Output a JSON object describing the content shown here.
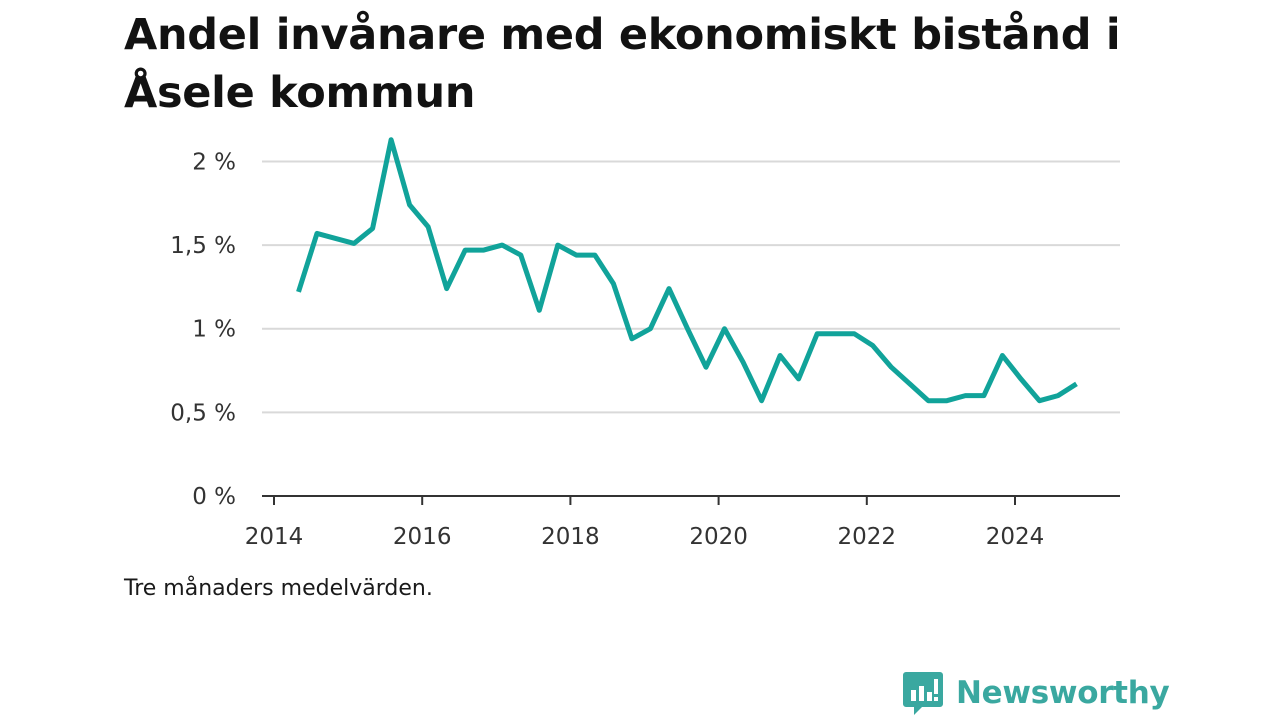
{
  "chart_data": {
    "type": "line",
    "title": "Andel invånare med ekonomiskt bistånd i Åsele kommun",
    "note": "Tre månaders medelvärden.",
    "ylim": [
      0,
      2.2
    ],
    "y_ticks": [
      {
        "value": 0,
        "label": "0 %"
      },
      {
        "value": 0.5,
        "label": "0,5 %"
      },
      {
        "value": 1,
        "label": "1 %"
      },
      {
        "value": 1.5,
        "label": "1,5 %"
      },
      {
        "value": 2,
        "label": "2 %"
      }
    ],
    "xlim": [
      2014,
      2025.3
    ],
    "x_ticks": [
      {
        "value": 2014,
        "label": "2014"
      },
      {
        "value": 2016,
        "label": "2016"
      },
      {
        "value": 2018,
        "label": "2018"
      },
      {
        "value": 2020,
        "label": "2020"
      },
      {
        "value": 2022,
        "label": "2022"
      },
      {
        "value": 2024,
        "label": "2024"
      }
    ],
    "grid": true,
    "line_color": "#11a39a",
    "series": [
      {
        "x": [
          2014.33,
          2014.58,
          2014.83,
          2015.08,
          2015.33,
          2015.58,
          2015.83,
          2016.08,
          2016.33,
          2016.58,
          2016.83,
          2017.08,
          2017.33,
          2017.58,
          2017.83,
          2018.08,
          2018.33,
          2018.58,
          2018.83,
          2019.08,
          2019.33,
          2019.58,
          2019.83,
          2020.08,
          2020.33,
          2020.58,
          2020.83,
          2021.08,
          2021.33,
          2021.58,
          2021.83,
          2022.08,
          2022.33,
          2022.58,
          2022.83,
          2023.08,
          2023.33,
          2023.58,
          2023.83,
          2024.08,
          2024.33,
          2024.58,
          2024.83
        ],
        "y": [
          1.22,
          1.57,
          1.54,
          1.51,
          1.6,
          2.13,
          1.74,
          1.61,
          1.24,
          1.47,
          1.47,
          1.5,
          1.44,
          1.11,
          1.5,
          1.44,
          1.44,
          1.27,
          0.94,
          1.0,
          1.24,
          1.0,
          0.77,
          1.0,
          0.8,
          0.57,
          0.84,
          0.7,
          0.97,
          0.97,
          0.97,
          0.9,
          0.77,
          0.67,
          0.57,
          0.57,
          0.6,
          0.6,
          0.84,
          0.7,
          0.57,
          0.6,
          0.67
        ]
      }
    ]
  },
  "brand": {
    "name": "Newsworthy",
    "icon": "bar-chart-speech-bubble-icon",
    "color": "#3aa8a0"
  }
}
